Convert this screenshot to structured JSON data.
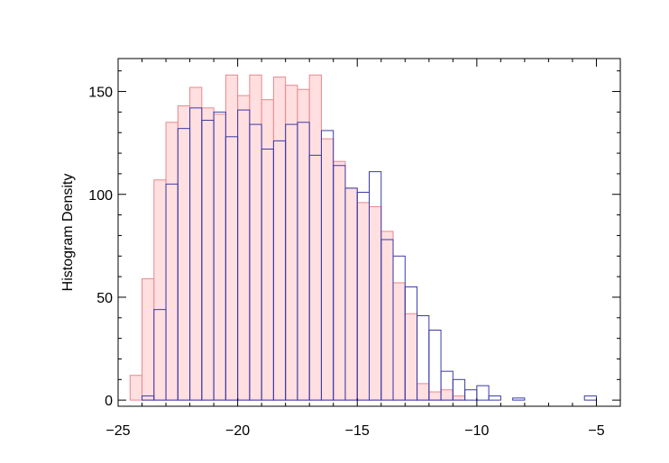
{
  "chart_data": {
    "type": "bar",
    "title": "",
    "xlabel": "",
    "ylabel": "Histogram Density",
    "xlim": [
      -25,
      -4
    ],
    "ylim": [
      -3,
      166
    ],
    "bin_width": 0.5,
    "x_ticks": [
      -25,
      -20,
      -15,
      -10,
      -5
    ],
    "x_tick_labels": [
      "−25",
      "−20",
      "−15",
      "−10",
      "−5"
    ],
    "y_ticks": [
      0,
      50,
      100,
      150
    ],
    "y_tick_labels": [
      "0",
      "50",
      "100",
      "150"
    ],
    "grid": false,
    "legend": "none",
    "series": [
      {
        "style": "filled",
        "fill": "#ffdfe0",
        "stroke": "#e8888b",
        "bins": [
          [
            -24.5,
            12
          ],
          [
            -24.0,
            59
          ],
          [
            -23.5,
            107
          ],
          [
            -23.0,
            135
          ],
          [
            -22.5,
            143
          ],
          [
            -22.0,
            152
          ],
          [
            -21.5,
            142
          ],
          [
            -21.0,
            139
          ],
          [
            -20.5,
            158
          ],
          [
            -20.0,
            148
          ],
          [
            -19.5,
            158
          ],
          [
            -19.0,
            146
          ],
          [
            -18.5,
            157
          ],
          [
            -18.0,
            153
          ],
          [
            -17.5,
            151
          ],
          [
            -17.0,
            158
          ],
          [
            -16.5,
            127
          ],
          [
            -16.0,
            116
          ],
          [
            -15.5,
            103
          ],
          [
            -15.0,
            96
          ],
          [
            -14.5,
            94
          ],
          [
            -14.0,
            82
          ],
          [
            -13.5,
            57
          ],
          [
            -13.0,
            42
          ],
          [
            -12.5,
            8
          ],
          [
            -12.0,
            4
          ],
          [
            -11.5,
            5
          ],
          [
            -11.0,
            2
          ]
        ]
      },
      {
        "style": "outline",
        "stroke": "#3a3aa8",
        "bins": [
          [
            -24.0,
            2
          ],
          [
            -23.5,
            44
          ],
          [
            -23.0,
            105
          ],
          [
            -22.5,
            132
          ],
          [
            -22.0,
            142
          ],
          [
            -21.5,
            136
          ],
          [
            -21.0,
            140
          ],
          [
            -20.5,
            128
          ],
          [
            -20.0,
            141
          ],
          [
            -19.5,
            134
          ],
          [
            -19.0,
            122
          ],
          [
            -18.5,
            126
          ],
          [
            -18.0,
            134
          ],
          [
            -17.5,
            135
          ],
          [
            -17.0,
            119
          ],
          [
            -16.5,
            131
          ],
          [
            -16.0,
            114
          ],
          [
            -15.5,
            103
          ],
          [
            -15.0,
            101
          ],
          [
            -14.5,
            111
          ],
          [
            -14.0,
            78
          ],
          [
            -13.5,
            70
          ],
          [
            -13.0,
            55
          ],
          [
            -12.5,
            41
          ],
          [
            -12.0,
            34
          ],
          [
            -11.5,
            14
          ],
          [
            -11.0,
            10
          ],
          [
            -10.5,
            5
          ],
          [
            -10.0,
            7
          ],
          [
            -9.5,
            2
          ],
          [
            -9.0,
            0
          ],
          [
            -8.5,
            1
          ],
          [
            -5.5,
            2
          ]
        ]
      }
    ]
  }
}
